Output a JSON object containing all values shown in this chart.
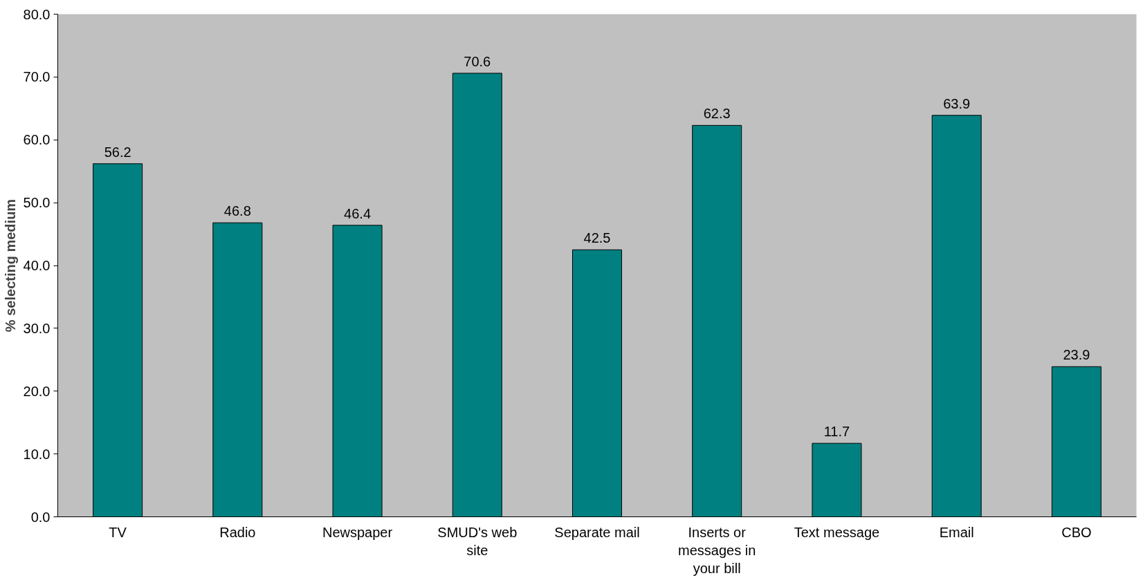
{
  "chart_data": {
    "type": "bar",
    "ylabel": "% selecting medium",
    "categories": [
      "TV",
      "Radio",
      "Newspaper",
      "SMUD's web site",
      "Separate mail",
      "Inserts or messages in your bill",
      "Text message",
      "Email",
      "CBO"
    ],
    "values": [
      56.2,
      46.8,
      46.4,
      70.6,
      42.5,
      62.3,
      11.7,
      63.9,
      23.9
    ],
    "color": "#008080",
    "data_labels": true,
    "grid": false,
    "ylim": [
      0,
      80
    ],
    "yticks": [
      {
        "value": 0,
        "label": "0.0"
      },
      {
        "value": 10,
        "label": "10.0"
      },
      {
        "value": 20,
        "label": "20.0"
      },
      {
        "value": 30,
        "label": "30.0"
      },
      {
        "value": 40,
        "label": "40.0"
      },
      {
        "value": 50,
        "label": "50.0"
      },
      {
        "value": 60,
        "label": "60.0"
      },
      {
        "value": 70,
        "label": "70.0"
      },
      {
        "value": 80,
        "label": "80.0"
      }
    ]
  }
}
